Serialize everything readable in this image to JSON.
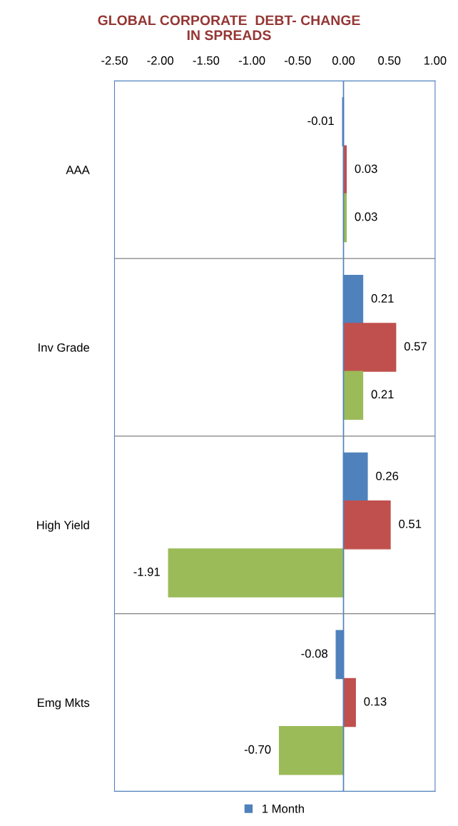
{
  "chart_data": {
    "type": "bar",
    "orientation": "horizontal",
    "title": "GLOBAL CORPORATE  DEBT- CHANGE\nIN SPREADS",
    "categories": [
      "AAA",
      "Inv Grade",
      "High Yield",
      "Emg Mkts"
    ],
    "series": [
      {
        "name": "1 Month",
        "color": "#4f81bd",
        "values": [
          -0.01,
          0.21,
          0.26,
          -0.08
        ],
        "value_labels": [
          "-0.01",
          "0.21",
          "0.26",
          "-0.08"
        ]
      },
      {
        "color": "#c0504d",
        "values": [
          0.03,
          0.57,
          0.51,
          0.13
        ],
        "value_labels": [
          "0.03",
          "0.57",
          "0.51",
          "0.13"
        ]
      },
      {
        "color": "#9bbb59",
        "values": [
          0.03,
          0.21,
          -1.91,
          -0.7
        ],
        "value_labels": [
          "0.03",
          "0.21",
          "-1.91",
          "-0.70"
        ]
      }
    ],
    "xlim": [
      -2.5,
      1.0
    ],
    "xticks": [
      {
        "value": -2.5,
        "label": "-2.50"
      },
      {
        "value": -2.0,
        "label": "-2.00"
      },
      {
        "value": -1.5,
        "label": "-1.50"
      },
      {
        "value": -1.0,
        "label": "-1.00"
      },
      {
        "value": -0.5,
        "label": "-0.50"
      },
      {
        "value": 0.0,
        "label": "0.00"
      },
      {
        "value": 0.5,
        "label": "0.50"
      },
      {
        "value": 1.0,
        "label": "1.00"
      }
    ],
    "ref_lines": [
      {
        "axis": "x",
        "value": 0,
        "color": "#4f81bd"
      }
    ],
    "grid": "y",
    "legend": "bottom"
  }
}
